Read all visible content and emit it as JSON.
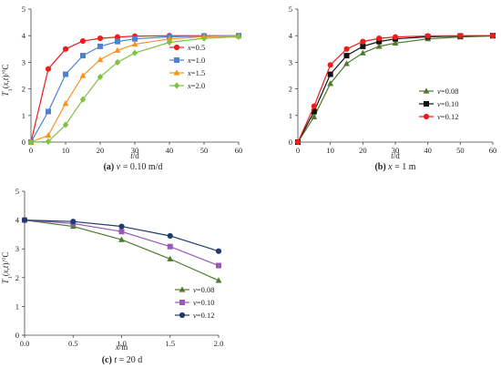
{
  "chart_data": [
    {
      "type": "line",
      "panel": "a",
      "caption": {
        "label": "(a)",
        "text": "v = 0.10 m/d"
      },
      "xlabel": "t/d",
      "ylabel": "T1(x,t)/°C",
      "xlim": [
        0,
        60
      ],
      "ylim": [
        0,
        5
      ],
      "xticks": [
        0,
        10,
        20,
        30,
        40,
        50,
        60
      ],
      "yticks": [
        0,
        1,
        2,
        3,
        4,
        5
      ],
      "x": [
        0,
        5,
        10,
        15,
        20,
        25,
        30,
        40,
        50,
        60
      ],
      "legend_position": "right",
      "series": [
        {
          "name": "x=0.5",
          "color": "#ee1c1c",
          "marker": "circle",
          "values": [
            0,
            2.75,
            3.5,
            3.8,
            3.9,
            3.95,
            3.98,
            4.0,
            4.0,
            4.0
          ]
        },
        {
          "name": "x=1.0",
          "color": "#4f81d0",
          "marker": "square",
          "values": [
            0,
            1.15,
            2.55,
            3.25,
            3.6,
            3.78,
            3.88,
            3.96,
            3.99,
            4.0
          ]
        },
        {
          "name": "x=1.5",
          "color": "#f7931e",
          "marker": "triangle",
          "values": [
            0,
            0.25,
            1.45,
            2.5,
            3.1,
            3.45,
            3.68,
            3.88,
            3.96,
            3.99
          ]
        },
        {
          "name": "x=2.0",
          "color": "#7dc242",
          "marker": "diamond",
          "values": [
            0,
            0.02,
            0.65,
            1.6,
            2.45,
            3.0,
            3.35,
            3.75,
            3.9,
            3.96
          ]
        }
      ]
    },
    {
      "type": "line",
      "panel": "b",
      "caption": {
        "label": "(b)",
        "text": "x = 1 m"
      },
      "xlabel": "t/d",
      "ylabel": "",
      "xlim": [
        0,
        60
      ],
      "ylim": [
        0,
        5
      ],
      "xticks": [
        0,
        10,
        20,
        30,
        40,
        50,
        60
      ],
      "yticks": [
        0,
        1,
        2,
        3,
        4,
        5
      ],
      "x": [
        0,
        5,
        10,
        15,
        20,
        25,
        30,
        40,
        50,
        60
      ],
      "legend_position": "right",
      "series": [
        {
          "name": "v=0.08",
          "color": "#4e7a2c",
          "marker": "triangle",
          "values": [
            0,
            0.95,
            2.2,
            2.95,
            3.35,
            3.6,
            3.72,
            3.88,
            3.95,
            3.99
          ]
        },
        {
          "name": "v=0.10",
          "color": "#111111",
          "marker": "square",
          "values": [
            0,
            1.15,
            2.55,
            3.25,
            3.6,
            3.78,
            3.88,
            3.96,
            3.99,
            4.0
          ]
        },
        {
          "name": "v=0.12",
          "color": "#ee1c1c",
          "marker": "circle",
          "values": [
            0,
            1.35,
            2.9,
            3.5,
            3.78,
            3.9,
            3.95,
            3.99,
            4.0,
            4.0
          ]
        }
      ]
    },
    {
      "type": "line",
      "panel": "c",
      "caption": {
        "label": "(c)",
        "text": "t = 20 d"
      },
      "xlabel": "x/m",
      "ylabel": "T1(x,t)/°C",
      "xlim": [
        0,
        2
      ],
      "ylim": [
        0,
        5
      ],
      "xticks": [
        "0.0",
        "0.5",
        "1.0",
        "1.5",
        "2.0"
      ],
      "yticks": [
        0,
        1,
        2,
        3,
        4,
        5
      ],
      "x": [
        0,
        0.5,
        1.0,
        1.5,
        2.0
      ],
      "legend_position": "bottom-right",
      "series": [
        {
          "name": "v=0.08",
          "color": "#4e7a2c",
          "marker": "triangle",
          "values": [
            4.0,
            3.78,
            3.32,
            2.65,
            1.9
          ]
        },
        {
          "name": "v=0.10",
          "color": "#9b59b6",
          "marker": "square",
          "values": [
            4.0,
            3.88,
            3.6,
            3.08,
            2.42
          ]
        },
        {
          "name": "v=0.12",
          "color": "#1f3a6b",
          "marker": "circle",
          "values": [
            4.0,
            3.95,
            3.78,
            3.45,
            2.92
          ]
        }
      ]
    }
  ]
}
